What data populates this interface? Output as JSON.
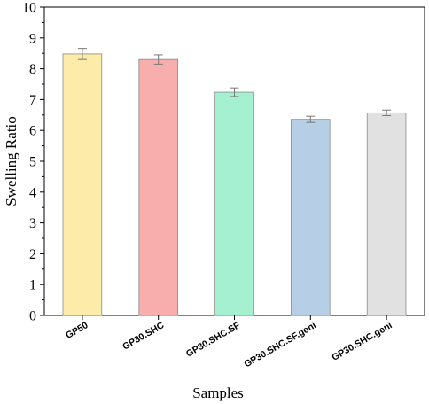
{
  "chart_data": {
    "type": "bar",
    "title": "",
    "xlabel": "Samples",
    "ylabel": "Swelling Ratio",
    "ylim": [
      0,
      10
    ],
    "yticks": [
      0,
      1,
      2,
      3,
      4,
      5,
      6,
      7,
      8,
      9,
      10
    ],
    "grid": false,
    "categories": [
      "GP50",
      "GP30.SHC",
      "GP30.SHC.SF",
      "GP30.SHC.SF.geni",
      "GP30.SHC.geni"
    ],
    "values": [
      8.48,
      8.3,
      7.24,
      6.36,
      6.57
    ],
    "errors": [
      0.18,
      0.15,
      0.14,
      0.1,
      0.09
    ],
    "colors": [
      "#FDEBA9",
      "#F9AEAE",
      "#A6F0D2",
      "#B7CFE6",
      "#E1E1E1"
    ]
  }
}
